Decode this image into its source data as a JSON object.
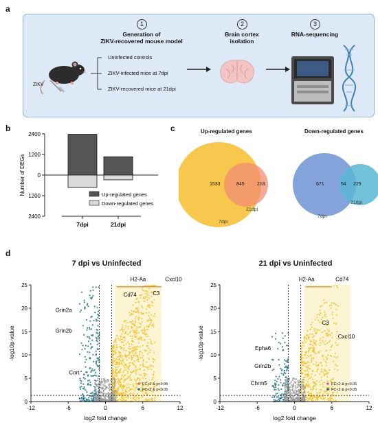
{
  "panel_a": {
    "letter": "a",
    "steps": [
      {
        "num": "1",
        "title_line1": "Generation of",
        "title_line2": "ZIKV-recovered mouse model"
      },
      {
        "num": "2",
        "title_line1": "Brain cortex",
        "title_line2": "isolation"
      },
      {
        "num": "3",
        "title_line1": "RNA-sequencing",
        "title_line2": ""
      }
    ],
    "mouse_label": "ZIKV",
    "conditions": [
      "Uninfected controls",
      "ZIKV-infected mice at 7dpi",
      "ZIKV-recovered mice at 21dpi"
    ]
  },
  "panel_b": {
    "letter": "b",
    "ylabel": "Number of DEGs",
    "legend": [
      "Up-regulated genes",
      "Down-regulated genes"
    ]
  },
  "panel_c": {
    "letter": "c",
    "up": {
      "title": "Up-regulated genes",
      "left": "1533",
      "overlap": "845",
      "right": "218",
      "label_small": "21dpi",
      "label_big": "7dpi"
    },
    "down": {
      "title": "Down-regulated genes",
      "left": "671",
      "overlap": "54",
      "right": "225",
      "label_small": "21dpi",
      "label_big": "7dpi"
    }
  },
  "panel_d": {
    "letter": "d",
    "plots": [
      {
        "title": "7 dpi vs Uninfected",
        "genes": [
          "H2-Aa",
          "Cxcl10",
          "Cd74",
          "C3",
          "Grin2a",
          "Grin2b",
          "Cort"
        ]
      },
      {
        "title": "21 dpi vs Uninfected",
        "genes": [
          "H2-Aa",
          "Cd74",
          "C3",
          "Cxcl10",
          "Epha6",
          "Grin2b",
          "Chrm5"
        ]
      }
    ],
    "xlabel": "log2 fold change",
    "ylabel": "-log10p-value",
    "legend": [
      "FC>2 & p<0.05",
      "FC<2 & p<0.05"
    ]
  },
  "chart_data": [
    {
      "type": "bar",
      "categories": [
        "7dpi",
        "21dpi"
      ],
      "series": [
        {
          "name": "Up-regulated genes",
          "values": [
            2378,
            1063
          ]
        },
        {
          "name": "Down-regulated genes",
          "values": [
            -725,
            -279
          ]
        }
      ],
      "ylabel": "Number of DEGs",
      "yticks": [
        "2400",
        "1200",
        "0",
        "1200",
        "2400"
      ],
      "ylim": [
        -2400,
        2400
      ],
      "colors": [
        "#555555",
        "#d9d9d9"
      ]
    },
    {
      "type": "scatter",
      "title": "7 dpi vs Uninfected",
      "xlabel": "log2 fold change",
      "ylabel": "-log10p-value",
      "xlim": [
        -12,
        12
      ],
      "ylim": [
        0,
        25
      ],
      "xticks": [
        "-12",
        "-6",
        "0",
        "6",
        "12"
      ],
      "yticks": [
        "0",
        "5",
        "10",
        "15",
        "20",
        "25"
      ],
      "legend": [
        "FC>2 & p<0.05",
        "FC<2 & p<0.05"
      ],
      "colors": {
        "up": "#f2c232",
        "down": "#1c6f82",
        "ns": "#9a9a9a",
        "highlight": "#e06666"
      }
    },
    {
      "type": "scatter",
      "title": "21 dpi vs Uninfected",
      "xlabel": "log2 fold change",
      "ylabel": "-log10p-value",
      "xlim": [
        -12,
        12
      ],
      "ylim": [
        0,
        25
      ],
      "xticks": [
        "-12",
        "-6",
        "0",
        "6",
        "12"
      ],
      "yticks": [
        "0",
        "5",
        "10",
        "15",
        "20",
        "25"
      ],
      "legend": [
        "FC>2 & p<0.05",
        "FC<2 & p<0.05"
      ],
      "colors": {
        "up": "#f2c232",
        "down": "#1c6f82",
        "ns": "#9a9a9a",
        "highlight": "#e06666"
      }
    }
  ]
}
